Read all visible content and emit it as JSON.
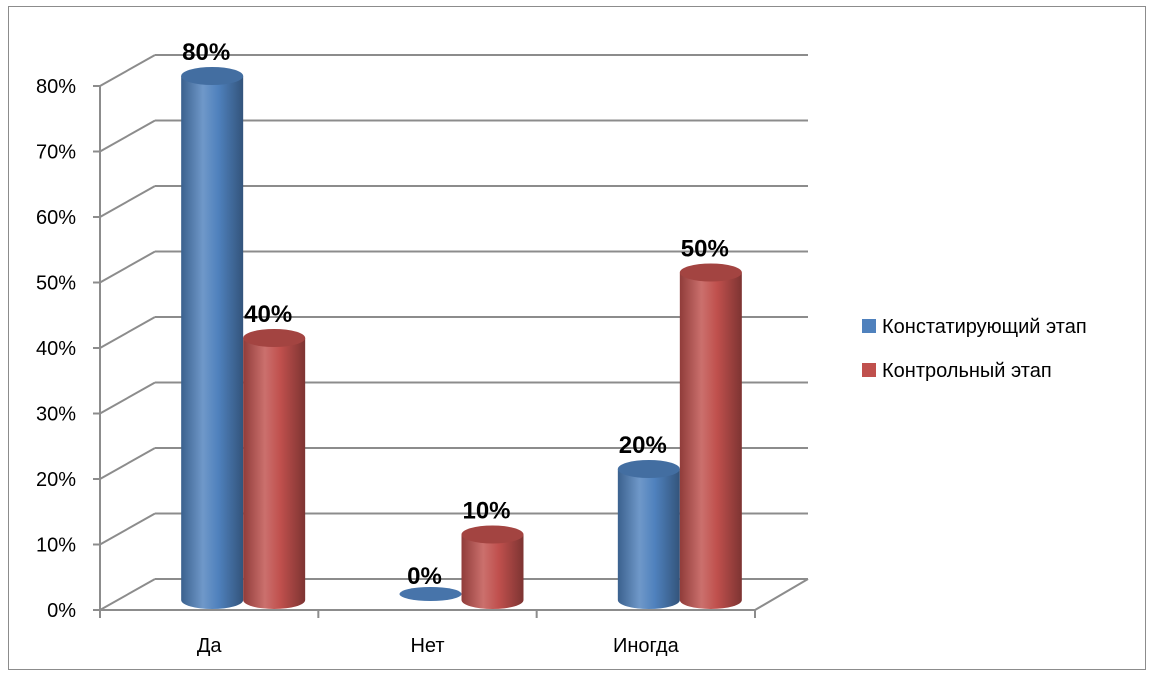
{
  "chart_data": {
    "type": "bar",
    "style": "3d-cylinder",
    "categories": [
      "Да",
      "Нет",
      "Иногда"
    ],
    "series": [
      {
        "name": "Констатирующий этап",
        "values": [
          80,
          0,
          20
        ],
        "labels": [
          "80%",
          "0%",
          "20%"
        ],
        "color": "#4f81bd"
      },
      {
        "name": "Контрольный этап",
        "values": [
          40,
          10,
          50
        ],
        "labels": [
          "40%",
          "10%",
          "50%"
        ],
        "color": "#c0504d"
      }
    ],
    "ylim": [
      0,
      80
    ],
    "yticks": [
      0,
      10,
      20,
      30,
      40,
      50,
      60,
      70,
      80
    ],
    "ytick_labels": [
      "0%",
      "10%",
      "20%",
      "30%",
      "40%",
      "50%",
      "60%",
      "70%",
      "80%"
    ],
    "grid": true,
    "legend_position": "right",
    "title": "",
    "xlabel": "",
    "ylabel": ""
  }
}
